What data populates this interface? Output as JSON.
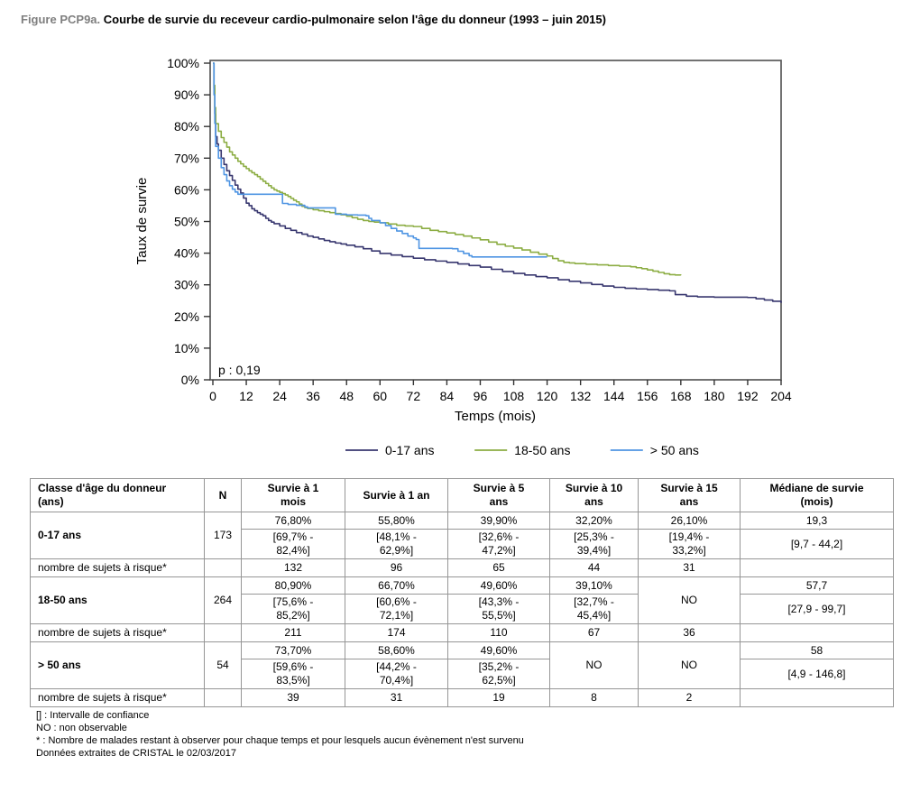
{
  "figure": {
    "label": "Figure PCP9a.",
    "title": "Courbe de survie du receveur cardio-pulmonaire selon l'âge du donneur (1993 – juin 2015)"
  },
  "chart_data": {
    "type": "line",
    "subtype": "kaplan-meier-step",
    "title": "",
    "xlabel": "Temps (mois)",
    "ylabel": "Taux de survie",
    "xlim": [
      0,
      204
    ],
    "ylim": [
      0,
      100
    ],
    "x_ticks": [
      0,
      12,
      24,
      36,
      48,
      60,
      72,
      84,
      96,
      108,
      120,
      132,
      144,
      156,
      168,
      180,
      192,
      204
    ],
    "y_ticks": [
      0,
      10,
      20,
      30,
      40,
      50,
      60,
      70,
      80,
      90,
      100
    ],
    "y_tick_suffix": "%",
    "grid": false,
    "annotation": "p : 0,19",
    "legend_position": "bottom",
    "axis_color": "#595959",
    "series": [
      {
        "name": "0-17 ans",
        "color": "#38376f",
        "points": [
          [
            0,
            100
          ],
          [
            0.4,
            92
          ],
          [
            0.7,
            84
          ],
          [
            1,
            76.8
          ],
          [
            1.5,
            74.5
          ],
          [
            2,
            72.5
          ],
          [
            3,
            70
          ],
          [
            4,
            68
          ],
          [
            5,
            66
          ],
          [
            6,
            64.5
          ],
          [
            7,
            63
          ],
          [
            8,
            61.5
          ],
          [
            9,
            60.2
          ],
          [
            10,
            59
          ],
          [
            11,
            57.4
          ],
          [
            12,
            55.8
          ],
          [
            13,
            55
          ],
          [
            14,
            54
          ],
          [
            15,
            53.4
          ],
          [
            16,
            52.8
          ],
          [
            17,
            52.3
          ],
          [
            18,
            51.8
          ],
          [
            19,
            51
          ],
          [
            20,
            50.3
          ],
          [
            21,
            49.8
          ],
          [
            22,
            49.3
          ],
          [
            24,
            48.6
          ],
          [
            26,
            47.8
          ],
          [
            28,
            47.2
          ],
          [
            30,
            46.5
          ],
          [
            32,
            46
          ],
          [
            34,
            45.4
          ],
          [
            36,
            45
          ],
          [
            38,
            44.5
          ],
          [
            40,
            44
          ],
          [
            42,
            43.6
          ],
          [
            44,
            43.2
          ],
          [
            46,
            42.9
          ],
          [
            48,
            42.5
          ],
          [
            51,
            42
          ],
          [
            54,
            41.4
          ],
          [
            57,
            40.7
          ],
          [
            60,
            39.9
          ],
          [
            64,
            39.4
          ],
          [
            68,
            38.9
          ],
          [
            72,
            38.4
          ],
          [
            76,
            37.9
          ],
          [
            80,
            37.5
          ],
          [
            84,
            37.1
          ],
          [
            88,
            36.6
          ],
          [
            92,
            36.1
          ],
          [
            96,
            35.6
          ],
          [
            100,
            34.9
          ],
          [
            104,
            34.2
          ],
          [
            108,
            33.6
          ],
          [
            112,
            33.1
          ],
          [
            116,
            32.6
          ],
          [
            120,
            32.2
          ],
          [
            124,
            31.6
          ],
          [
            128,
            31.1
          ],
          [
            132,
            30.6
          ],
          [
            136,
            30.1
          ],
          [
            140,
            29.6
          ],
          [
            144,
            29.2
          ],
          [
            148,
            28.9
          ],
          [
            152,
            28.7
          ],
          [
            156,
            28.5
          ],
          [
            160,
            28.3
          ],
          [
            164,
            28.1
          ],
          [
            166,
            26.9
          ],
          [
            170,
            26.4
          ],
          [
            174,
            26.2
          ],
          [
            180,
            26.1
          ],
          [
            186,
            26.1
          ],
          [
            192,
            26
          ],
          [
            195,
            25.6
          ],
          [
            198,
            25.2
          ],
          [
            201,
            24.8
          ],
          [
            204,
            24.3
          ]
        ]
      },
      {
        "name": "18-50 ans",
        "color": "#8cad43",
        "points": [
          [
            0,
            100
          ],
          [
            0.4,
            93
          ],
          [
            0.7,
            86
          ],
          [
            1,
            80.9
          ],
          [
            2,
            78.5
          ],
          [
            3,
            76.5
          ],
          [
            4,
            75
          ],
          [
            5,
            73.5
          ],
          [
            6,
            72
          ],
          [
            7,
            71
          ],
          [
            8,
            70
          ],
          [
            9,
            69
          ],
          [
            10,
            68.2
          ],
          [
            11,
            67.4
          ],
          [
            12,
            66.7
          ],
          [
            13,
            66
          ],
          [
            14,
            65.4
          ],
          [
            15,
            64.8
          ],
          [
            16,
            64.2
          ],
          [
            17,
            63.4
          ],
          [
            18,
            62.7
          ],
          [
            19,
            62
          ],
          [
            20,
            61.3
          ],
          [
            21,
            60.6
          ],
          [
            22,
            60
          ],
          [
            23,
            59.6
          ],
          [
            24,
            59.2
          ],
          [
            25,
            58.8
          ],
          [
            26,
            58.4
          ],
          [
            27,
            57.9
          ],
          [
            28,
            57.3
          ],
          [
            29,
            56.7
          ],
          [
            30,
            56.2
          ],
          [
            31,
            55.5
          ],
          [
            32,
            54.8
          ],
          [
            33,
            54.4
          ],
          [
            34,
            54.1
          ],
          [
            36,
            53.7
          ],
          [
            38,
            53.4
          ],
          [
            40,
            53.1
          ],
          [
            42,
            52.8
          ],
          [
            44,
            52.5
          ],
          [
            46,
            52.1
          ],
          [
            48,
            51.7
          ],
          [
            50,
            51.2
          ],
          [
            52,
            50.7
          ],
          [
            54,
            50.3
          ],
          [
            56,
            50
          ],
          [
            58,
            49.8
          ],
          [
            60,
            49.6
          ],
          [
            63,
            49.2
          ],
          [
            66,
            48.8
          ],
          [
            69,
            48.6
          ],
          [
            72,
            48.4
          ],
          [
            75,
            47.8
          ],
          [
            78,
            47.2
          ],
          [
            81,
            46.8
          ],
          [
            84,
            46.4
          ],
          [
            87,
            45.9
          ],
          [
            90,
            45.4
          ],
          [
            93,
            44.8
          ],
          [
            96,
            44.2
          ],
          [
            99,
            43.5
          ],
          [
            102,
            42.8
          ],
          [
            105,
            42.2
          ],
          [
            108,
            41.6
          ],
          [
            111,
            41
          ],
          [
            114,
            40.3
          ],
          [
            117,
            39.7
          ],
          [
            120,
            39.1
          ],
          [
            122,
            38.3
          ],
          [
            124,
            37.6
          ],
          [
            126,
            37.1
          ],
          [
            128,
            36.9
          ],
          [
            130,
            36.7
          ],
          [
            134,
            36.5
          ],
          [
            138,
            36.3
          ],
          [
            142,
            36.1
          ],
          [
            146,
            35.9
          ],
          [
            150,
            35.7
          ],
          [
            152,
            35.4
          ],
          [
            154,
            35.1
          ],
          [
            156,
            34.7
          ],
          [
            158,
            34.3
          ],
          [
            160,
            33.9
          ],
          [
            162,
            33.5
          ],
          [
            164,
            33.2
          ],
          [
            166,
            33.1
          ],
          [
            168,
            33
          ]
        ]
      },
      {
        "name": "> 50 ans",
        "color": "#4f95e3",
        "points": [
          [
            0,
            100
          ],
          [
            0.4,
            90
          ],
          [
            0.7,
            81
          ],
          [
            1,
            73.7
          ],
          [
            2,
            70
          ],
          [
            3,
            67
          ],
          [
            4,
            64.8
          ],
          [
            5,
            62.8
          ],
          [
            6,
            61.3
          ],
          [
            7,
            60.2
          ],
          [
            8,
            59.3
          ],
          [
            9,
            58.6
          ],
          [
            24,
            58.6
          ],
          [
            25,
            55.7
          ],
          [
            27,
            55.4
          ],
          [
            30,
            55.1
          ],
          [
            33,
            54.6
          ],
          [
            34,
            54.3
          ],
          [
            43,
            54.3
          ],
          [
            44,
            52.3
          ],
          [
            48,
            52.1
          ],
          [
            52,
            52
          ],
          [
            55,
            51.8
          ],
          [
            56,
            51
          ],
          [
            57,
            50.3
          ],
          [
            60,
            49.6
          ],
          [
            62,
            48.7
          ],
          [
            64,
            47.8
          ],
          [
            66,
            47
          ],
          [
            68,
            46.2
          ],
          [
            70,
            45.4
          ],
          [
            72,
            44.8
          ],
          [
            73,
            44.3
          ],
          [
            74,
            41.5
          ],
          [
            86,
            41.4
          ],
          [
            88,
            40.6
          ],
          [
            90,
            39.9
          ],
          [
            92,
            39.2
          ],
          [
            93,
            38.8
          ],
          [
            120,
            38.8
          ]
        ]
      }
    ]
  },
  "table": {
    "headers": [
      "Classe d'âge du donneur\n(ans)",
      "N",
      "Survie à 1\nmois",
      "Survie à 1 an",
      "Survie à 5\nans",
      "Survie à 10\nans",
      "Survie à 15\nans",
      "Médiane de survie\n(mois)"
    ],
    "risk_row_label": "nombre de sujets à risque*",
    "no_label": "NO",
    "groups": [
      {
        "label": "0-17 ans",
        "n": "173",
        "cols": [
          {
            "value": "76,80%",
            "ci": "[69,7% -\n82,4%]"
          },
          {
            "value": "55,80%",
            "ci": "[48,1% -\n62,9%]"
          },
          {
            "value": "39,90%",
            "ci": "[32,6% -\n47,2%]"
          },
          {
            "value": "32,20%",
            "ci": "[25,3% -\n39,4%]"
          },
          {
            "value": "26,10%",
            "ci": "[19,4% -\n33,2%]"
          }
        ],
        "median": "19,3",
        "median_ci": "[9,7 - 44,2]",
        "risk": [
          "132",
          "96",
          "65",
          "44",
          "31"
        ]
      },
      {
        "label": "18-50 ans",
        "n": "264",
        "cols": [
          {
            "value": "80,90%",
            "ci": "[75,6% -\n85,2%]"
          },
          {
            "value": "66,70%",
            "ci": "[60,6% -\n72,1%]"
          },
          {
            "value": "49,60%",
            "ci": "[43,3% -\n55,5%]"
          },
          {
            "value": "39,10%",
            "ci": "[32,7% -\n45,4%]"
          },
          {
            "no": true
          }
        ],
        "median": "57,7",
        "median_ci": "[27,9 - 99,7]",
        "risk": [
          "211",
          "174",
          "110",
          "67",
          "36"
        ]
      },
      {
        "label": "> 50 ans",
        "n": "54",
        "cols": [
          {
            "value": "73,70%",
            "ci": "[59,6% -\n83,5%]"
          },
          {
            "value": "58,60%",
            "ci": "[44,2% -\n70,4%]"
          },
          {
            "value": "49,60%",
            "ci": "[35,2% -\n62,5%]"
          },
          {
            "no": true
          },
          {
            "no": true
          }
        ],
        "median": "58",
        "median_ci": "[4,9 - 146,8]",
        "risk": [
          "39",
          "31",
          "19",
          "8",
          "2"
        ]
      }
    ]
  },
  "footnotes": [
    "[] : Intervalle de confiance",
    "NO : non observable",
    "* : Nombre de malades restant à observer pour chaque temps et pour lesquels aucun évènement n'est survenu",
    "Données extraites de CRISTAL le 02/03/2017"
  ]
}
